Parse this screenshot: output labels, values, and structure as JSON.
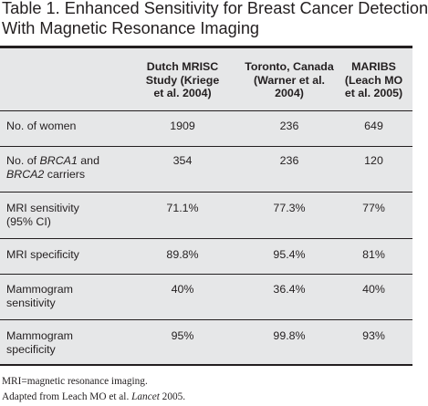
{
  "title": {
    "line1": "Table 1.  Enhanced Sensitivity for Breast Cancer Detection",
    "line2": "With Magnetic Resonance Imaging"
  },
  "table": {
    "columns": [
      {
        "line1": "Dutch MRISC",
        "line2": "Study (Kriege",
        "line3": "et al. 2004)"
      },
      {
        "line1": "Toronto, Canada",
        "line2": "(Warner et al.",
        "line3": "2004)"
      },
      {
        "line1": "MARIBS",
        "line2": "(Leach MO",
        "line3": "et al. 2005)"
      }
    ],
    "rows": [
      {
        "label_line1": "No. of women",
        "label_line2": "",
        "values": [
          "1909",
          "236",
          "649"
        ]
      },
      {
        "label_line1": "No. of BRCA1 and",
        "label_line2": "BRCA2 carriers",
        "values": [
          "354",
          "236",
          "120"
        ]
      },
      {
        "label_line1": "MRI sensitivity",
        "label_line2": "(95% CI)",
        "values": [
          "71.1%",
          "77.3%",
          "77%"
        ]
      },
      {
        "label_line1": "MRI specificity",
        "label_line2": "",
        "values": [
          "89.8%",
          "95.4%",
          "81%"
        ]
      },
      {
        "label_line1": "Mammogram",
        "label_line2": "sensitivity",
        "values": [
          "40%",
          "36.4%",
          "40%"
        ]
      },
      {
        "label_line1": "Mammogram",
        "label_line2": "specificity",
        "values": [
          "95%",
          "99.8%",
          "93%"
        ]
      }
    ],
    "brca1": "BRCA1",
    "brca2": "BRCA2",
    "brca_prefix": "No. of ",
    "brca_mid": " and",
    "brca_suffix": " carriers"
  },
  "footnotes": {
    "abbrev": "MRI=magnetic resonance imaging.",
    "source_prefix": "Adapted from Leach MO et al. ",
    "source_journal": "Lancet",
    "source_suffix": " 2005."
  },
  "colors": {
    "table_background": "#e6e7e8",
    "text": "#231f20",
    "rules": "#231f20"
  }
}
